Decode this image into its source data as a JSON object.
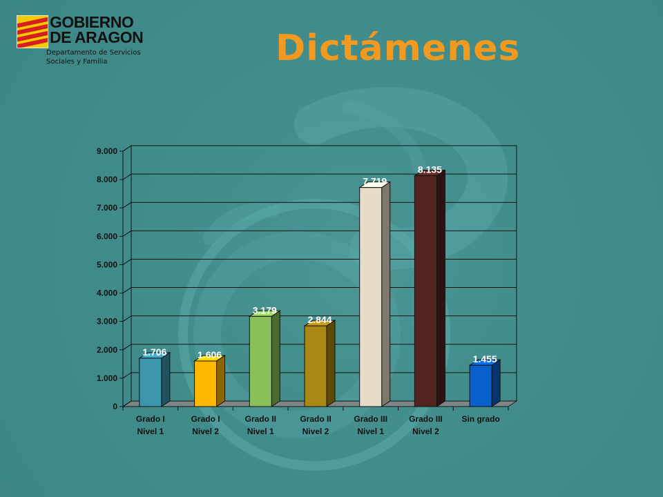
{
  "logo": {
    "title": "GOBIERNO\nDE ARAGON",
    "subtitle_line1": "Departamento de Servicios",
    "subtitle_line2": "Sociales y Familia",
    "colors": {
      "yellow": "#f4cb00",
      "red": "#d61e1e"
    }
  },
  "slide": {
    "title": "Dictámenes",
    "title_color": "#f29a1f",
    "background": "#3f8a8a"
  },
  "chart_data": {
    "type": "bar",
    "title": "",
    "xlabel": "",
    "ylabel": "",
    "ylim": [
      0,
      9000
    ],
    "yticks": [
      0,
      1000,
      2000,
      3000,
      4000,
      5000,
      6000,
      7000,
      8000,
      9000
    ],
    "ytick_labels": [
      "0",
      "1.000",
      "2.000",
      "3.000",
      "4.000",
      "5.000",
      "6.000",
      "7.000",
      "8.000",
      "9.000"
    ],
    "grid": true,
    "legend": "none",
    "categories": [
      [
        "Grado I",
        "Nivel 1"
      ],
      [
        "Grado I",
        "Nivel 2"
      ],
      [
        "Grado II",
        "Nivel 1"
      ],
      [
        "Grado II",
        "Nivel 2"
      ],
      [
        "Grado III",
        "Nivel 1"
      ],
      [
        "Grado III",
        "Nivel 2"
      ],
      [
        "Sin grado"
      ]
    ],
    "values": [
      1706,
      1606,
      3179,
      2844,
      7719,
      8135,
      1455
    ],
    "labels": [
      "1.706",
      "1.606",
      "3.179",
      "2.844",
      "7.719",
      "8.135",
      "1.455"
    ],
    "colors": [
      "#3a95ad",
      "#ffb800",
      "#8bbf5a",
      "#a98711",
      "#e7dcc7",
      "#522420",
      "#0860cc"
    ],
    "label_color": "#ffffff"
  }
}
